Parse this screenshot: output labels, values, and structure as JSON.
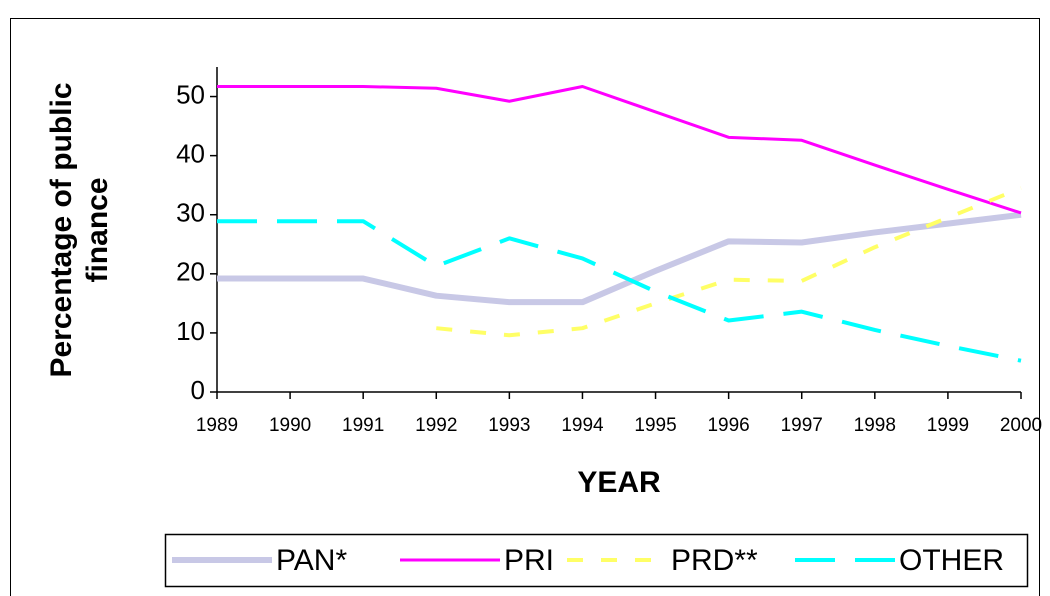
{
  "chart_data": {
    "type": "line",
    "x_label": "YEAR",
    "y_label": [
      "Percentage of public",
      "finance"
    ],
    "categories": [
      "1989",
      "1990",
      "1991",
      "1992",
      "1993",
      "1994",
      "1995",
      "1996",
      "1997",
      "1998",
      "1999",
      "2000"
    ],
    "series": [
      {
        "name": "PAN*",
        "color": "#c8c8e6",
        "width": 6,
        "dash": "none",
        "values": [
          19.2,
          19.2,
          19.2,
          16.3,
          15.2,
          15.2,
          20.5,
          25.5,
          25.3,
          27,
          28.5,
          30
        ]
      },
      {
        "name": "PRI",
        "color": "#ff00ff",
        "width": 3,
        "dash": "none",
        "values": [
          51.7,
          51.7,
          51.7,
          51.4,
          49.2,
          51.7,
          47.4,
          43.1,
          42.6,
          38.4,
          34.3,
          30.3
        ]
      },
      {
        "name": "PRD**",
        "color": "#ffff66",
        "width": 4,
        "dash": "16 18",
        "values": [
          null,
          null,
          null,
          10.8,
          9.6,
          10.8,
          15,
          19,
          18.8,
          24.5,
          29.5,
          34.5
        ]
      },
      {
        "name": "OTHER",
        "color": "#00ffff",
        "width": 4,
        "dash": "40 20",
        "values": [
          28.9,
          28.9,
          28.9,
          21.3,
          26,
          22.6,
          17,
          12.1,
          13.6,
          10.5,
          7.8,
          5.3
        ]
      }
    ],
    "ylim": [
      0,
      55
    ],
    "yticks": [
      0,
      10,
      20,
      30,
      40,
      50
    ],
    "grid": false,
    "legend": "bottom"
  }
}
